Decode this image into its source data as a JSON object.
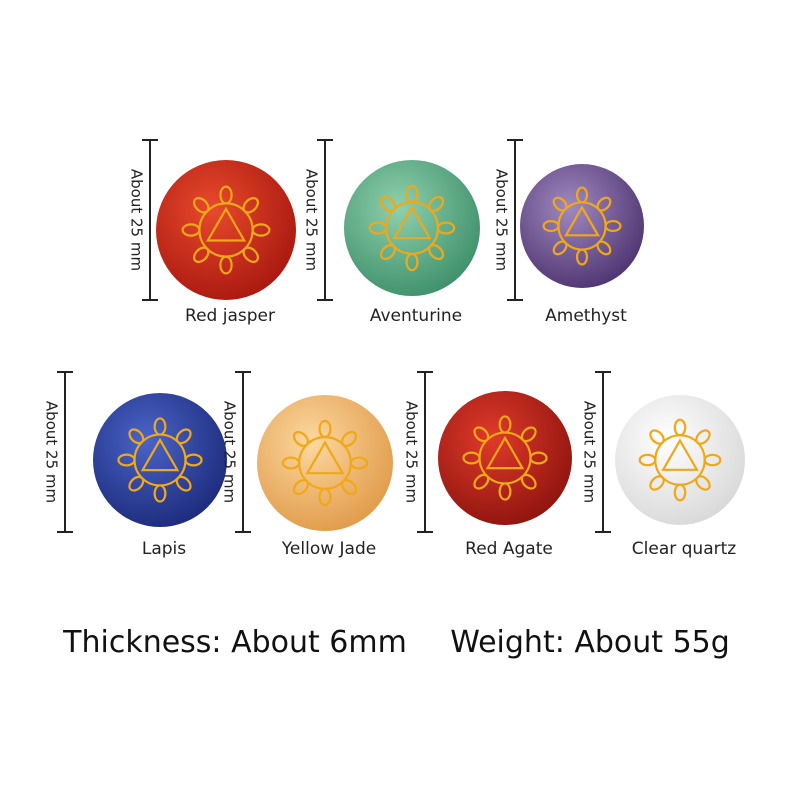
{
  "stones": [
    {
      "name": "Red jasper",
      "size": "About 25 mm"
    },
    {
      "name": "Aventurine",
      "size": "About 25 mm"
    },
    {
      "name": "Amethyst",
      "size": "About 25 mm"
    },
    {
      "name": "Lapis",
      "size": "About 25 mm"
    },
    {
      "name": "Yellow Jade",
      "size": "About 25 mm"
    },
    {
      "name": "Red Agate",
      "size": "About 25 mm"
    },
    {
      "name": "Clear quartz",
      "size": "About 25 mm"
    }
  ],
  "specs": {
    "thickness": "Thickness: About 6mm",
    "weight": "Weight: About 55g"
  }
}
